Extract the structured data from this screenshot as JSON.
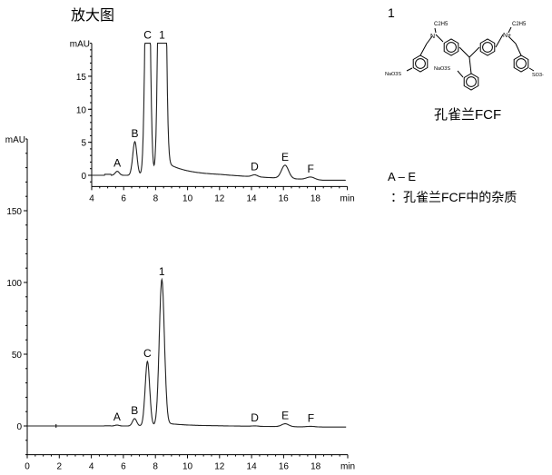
{
  "chart_data": [
    {
      "type": "line",
      "title": "放大图",
      "ylabel": "mAU",
      "xlabel": "min",
      "xlim": [
        4,
        20
      ],
      "ylim": [
        -1.7,
        20
      ],
      "xticks": [
        "4",
        "6",
        "8",
        "10",
        "12",
        "14",
        "16",
        "18"
      ],
      "yticks": [
        "0",
        "5",
        "10",
        "15"
      ],
      "clipped_at_top": true,
      "peaks": [
        {
          "label": "A",
          "x": 5.6,
          "y": 0.6
        },
        {
          "label": "B",
          "x": 6.7,
          "y": 5.1
        },
        {
          "label": "C",
          "x": 7.5,
          "y": 45
        },
        {
          "label": "1",
          "x": 8.4,
          "y": 102
        },
        {
          "label": "D",
          "x": 14.2,
          "y": 0.3
        },
        {
          "label": "E",
          "x": 16.1,
          "y": 2.0
        },
        {
          "label": "F",
          "x": 17.7,
          "y": 0.4
        }
      ]
    },
    {
      "type": "line",
      "ylabel": "mAU",
      "xlabel": "min",
      "xlim": [
        0,
        20
      ],
      "ylim": [
        -20,
        200
      ],
      "xticks": [
        "0",
        "2",
        "4",
        "6",
        "8",
        "10",
        "12",
        "14",
        "16",
        "18"
      ],
      "yticks": [
        "0",
        "50",
        "100",
        "150"
      ],
      "peaks": [
        {
          "label": "A",
          "x": 5.6,
          "y": 0.6
        },
        {
          "label": "B",
          "x": 6.7,
          "y": 5.1
        },
        {
          "label": "C",
          "x": 7.5,
          "y": 45
        },
        {
          "label": "1",
          "x": 8.4,
          "y": 102
        },
        {
          "label": "D",
          "x": 14.2,
          "y": 0.3
        },
        {
          "label": "E",
          "x": 16.1,
          "y": 2.0
        },
        {
          "label": "F",
          "x": 17.7,
          "y": 0.4
        }
      ]
    }
  ],
  "legend": {
    "compound_number": "1",
    "compound_name": "孔雀兰FCF",
    "structure_labels": {
      "ethyl_left": "C2H5",
      "ethyl_right": "C2H5",
      "n_left": "N",
      "n_right": "N+",
      "sulfo_left": "NaO3S",
      "sulfo_mid": "NaO3S",
      "sulfo_right": "SO3-"
    },
    "impurity_range": "A – E",
    "impurity_desc": "：孔雀兰FCF中的杂质"
  },
  "colors": {
    "line": "#222222",
    "axis": "#000000"
  }
}
